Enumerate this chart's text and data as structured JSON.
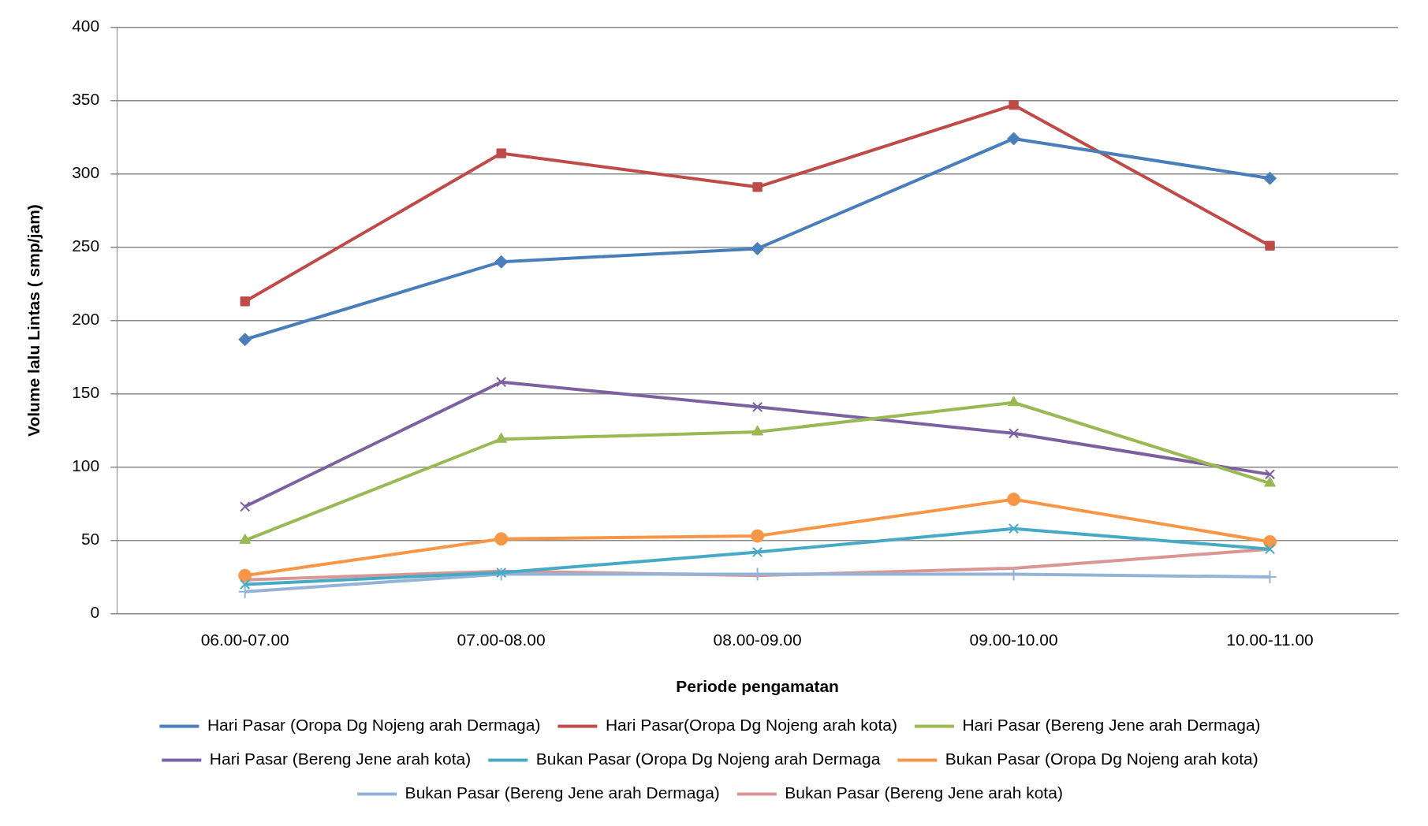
{
  "chart_data": {
    "type": "line",
    "xlabel": "Periode pengamatan",
    "ylabel": "Volume lalu Lintas ( smp/jam)",
    "categories": [
      "06.00-07.00",
      "07.00-08.00",
      "08.00-09.00",
      "09.00-10.00",
      "10.00-11.00"
    ],
    "ylim": [
      0,
      400
    ],
    "yticks": [
      0,
      50,
      100,
      150,
      200,
      250,
      300,
      350,
      400
    ],
    "grid": "y",
    "legend": "bottom",
    "series": [
      {
        "name": "Hari Pasar (Oropa Dg Nojeng arah Dermaga)",
        "color": "#4a7ebb",
        "marker": "diamond",
        "values": [
          187,
          240,
          249,
          324,
          297
        ]
      },
      {
        "name": "Hari Pasar(Oropa Dg Nojeng arah kota)",
        "color": "#be4b48",
        "marker": "square",
        "values": [
          213,
          314,
          291,
          347,
          251
        ]
      },
      {
        "name": "Hari Pasar (Bereng Jene arah Dermaga)",
        "color": "#98b954",
        "marker": "triangle",
        "values": [
          50,
          119,
          124,
          144,
          89
        ]
      },
      {
        "name": "Hari Pasar (Bereng Jene arah kota)",
        "color": "#7d60a0",
        "marker": "cross",
        "values": [
          73,
          158,
          141,
          123,
          95
        ]
      },
      {
        "name": "Bukan Pasar (Oropa Dg Nojeng arah Dermaga",
        "color": "#46aac5",
        "marker": "cross",
        "values": [
          20,
          28,
          42,
          58,
          44
        ]
      },
      {
        "name": "Bukan Pasar (Oropa Dg Nojeng arah kota)",
        "color": "#f79646",
        "marker": "circle",
        "values": [
          26,
          51,
          53,
          78,
          49
        ]
      },
      {
        "name": "Bukan Pasar (Bereng Jene arah Dermaga)",
        "color": "#95b3d7",
        "marker": "plus",
        "values": [
          15,
          27,
          27,
          27,
          25
        ]
      },
      {
        "name": "Bukan Pasar (Bereng Jene arah kota)",
        "color": "#d99694",
        "marker": "none",
        "values": [
          23,
          29,
          26,
          31,
          44
        ]
      }
    ]
  }
}
